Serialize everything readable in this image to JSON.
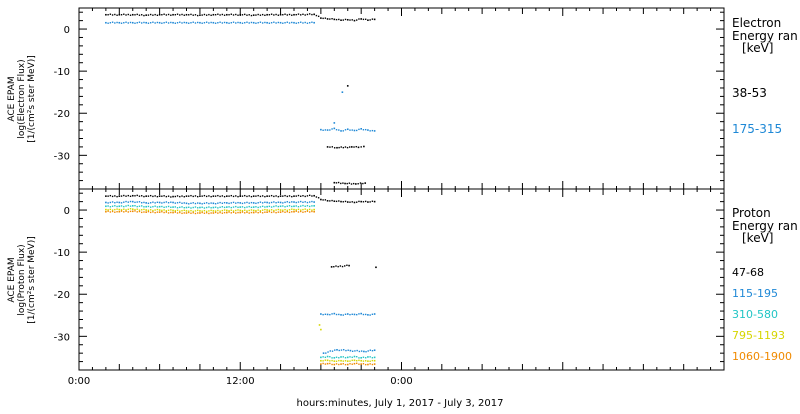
{
  "chart_data": [
    {
      "type": "scatter",
      "panel": "electron",
      "ylabel_lines": [
        "ACE EPAM",
        "log(Electron Flux)",
        "[1/(cm²s ster MeV)]"
      ],
      "yticks": [
        0,
        -10,
        -20,
        -30
      ],
      "ylim": [
        -38,
        5
      ],
      "legend_title": [
        "Electron",
        "Energy ran"
      ],
      "legend_unit": "[keV]",
      "series": [
        {
          "name": "38-53",
          "color": "#000000",
          "points": [
            [
              2.0,
              3.4
            ],
            [
              3.0,
              3.4
            ],
            [
              4.0,
              3.4
            ],
            [
              5.0,
              3.3
            ],
            [
              6.0,
              3.4
            ],
            [
              7.0,
              3.4
            ],
            [
              8.0,
              3.4
            ],
            [
              9.0,
              3.3
            ],
            [
              10.0,
              3.4
            ],
            [
              11.0,
              3.4
            ],
            [
              12.0,
              3.4
            ],
            [
              13.0,
              3.3
            ],
            [
              14.0,
              3.4
            ],
            [
              15.0,
              3.4
            ],
            [
              16.0,
              3.4
            ],
            [
              17.5,
              3.5
            ],
            [
              18.0,
              2.6
            ],
            [
              18.5,
              2.4
            ],
            [
              19.0,
              2.3
            ],
            [
              19.5,
              2.1
            ],
            [
              20.0,
              2.2
            ],
            [
              20.5,
              2.0
            ],
            [
              21.0,
              2.4
            ],
            [
              21.5,
              2.1
            ],
            [
              22.0,
              2.3
            ],
            [
              20.0,
              -13.5
            ],
            [
              18.5,
              -28.0
            ],
            [
              19.2,
              -28.2
            ],
            [
              20.3,
              -28.0
            ],
            [
              20.8,
              -28.1
            ],
            [
              21.2,
              -27.9
            ],
            [
              19.0,
              -36.5
            ],
            [
              19.8,
              -36.7
            ],
            [
              20.6,
              -36.8
            ],
            [
              21.3,
              -36.6
            ]
          ]
        },
        {
          "name": "175-315",
          "color": "#1e88d6",
          "points": [
            [
              2.0,
              1.5
            ],
            [
              3.0,
              1.5
            ],
            [
              4.0,
              1.5
            ],
            [
              5.0,
              1.5
            ],
            [
              6.0,
              1.5
            ],
            [
              7.0,
              1.5
            ],
            [
              8.0,
              1.5
            ],
            [
              9.0,
              1.5
            ],
            [
              10.0,
              1.5
            ],
            [
              11.0,
              1.5
            ],
            [
              12.0,
              1.5
            ],
            [
              13.0,
              1.5
            ],
            [
              14.0,
              1.5
            ],
            [
              15.0,
              1.5
            ],
            [
              16.0,
              1.5
            ],
            [
              17.5,
              1.5
            ],
            [
              18.0,
              -23.9
            ],
            [
              18.5,
              -24.0
            ],
            [
              19.0,
              -23.6
            ],
            [
              19.5,
              -24.2
            ],
            [
              20.0,
              -23.8
            ],
            [
              20.5,
              -24.1
            ],
            [
              21.0,
              -23.7
            ],
            [
              21.5,
              -24.0
            ],
            [
              22.0,
              -24.2
            ],
            [
              19.6,
              -15.0
            ],
            [
              19.0,
              -22.3
            ]
          ]
        }
      ]
    },
    {
      "type": "scatter",
      "panel": "proton",
      "ylabel_lines": [
        "ACE EPAM",
        "log(Proton Flux)",
        "[1/(cm²s ster MeV)]"
      ],
      "yticks": [
        0,
        -10,
        -20,
        -30
      ],
      "ylim": [
        -38,
        5
      ],
      "legend_title": [
        "Proton",
        "Energy ran"
      ],
      "legend_unit": "[keV]",
      "series": [
        {
          "name": "47-68",
          "color": "#000000",
          "points": [
            [
              2.0,
              3.3
            ],
            [
              3.0,
              3.3
            ],
            [
              4.0,
              3.4
            ],
            [
              5.0,
              3.3
            ],
            [
              6.0,
              3.3
            ],
            [
              7.0,
              3.2
            ],
            [
              8.0,
              3.3
            ],
            [
              9.0,
              3.3
            ],
            [
              10.0,
              3.3
            ],
            [
              11.0,
              3.3
            ],
            [
              12.0,
              3.3
            ],
            [
              13.0,
              3.3
            ],
            [
              14.0,
              3.3
            ],
            [
              15.0,
              3.3
            ],
            [
              16.0,
              3.3
            ],
            [
              17.5,
              3.4
            ],
            [
              18.0,
              2.5
            ],
            [
              18.5,
              2.2
            ],
            [
              19.0,
              2.1
            ],
            [
              19.5,
              2.0
            ],
            [
              20.0,
              1.9
            ],
            [
              20.5,
              1.8
            ],
            [
              21.0,
              2.0
            ],
            [
              21.5,
              1.9
            ],
            [
              22.0,
              2.0
            ],
            [
              18.8,
              -13.5
            ],
            [
              20.1,
              -13.2
            ],
            [
              22.1,
              -13.6
            ]
          ]
        },
        {
          "name": "115-195",
          "color": "#1e88d6",
          "points": [
            [
              2.0,
              1.8
            ],
            [
              3.0,
              1.8
            ],
            [
              4.0,
              2.0
            ],
            [
              5.0,
              1.7
            ],
            [
              6.0,
              1.8
            ],
            [
              7.0,
              1.8
            ],
            [
              8.0,
              1.6
            ],
            [
              9.0,
              1.6
            ],
            [
              10.0,
              1.6
            ],
            [
              11.0,
              1.7
            ],
            [
              12.0,
              1.7
            ],
            [
              13.0,
              1.7
            ],
            [
              14.0,
              1.8
            ],
            [
              15.0,
              1.8
            ],
            [
              16.0,
              1.9
            ],
            [
              17.5,
              1.9
            ],
            [
              18.0,
              -24.7
            ],
            [
              18.5,
              -24.8
            ],
            [
              19.0,
              -24.6
            ],
            [
              19.5,
              -24.9
            ],
            [
              20.0,
              -24.7
            ],
            [
              20.5,
              -24.8
            ],
            [
              21.0,
              -24.6
            ],
            [
              21.5,
              -24.9
            ],
            [
              22.0,
              -24.7
            ],
            [
              18.2,
              -34.0
            ],
            [
              19.2,
              -33.2
            ],
            [
              20.2,
              -33.4
            ],
            [
              21.2,
              -33.6
            ],
            [
              22.0,
              -33.3
            ]
          ]
        },
        {
          "name": "310-580",
          "color": "#22c5c5",
          "points": [
            [
              2.0,
              0.9
            ],
            [
              3.0,
              0.9
            ],
            [
              4.0,
              1.0
            ],
            [
              5.0,
              0.8
            ],
            [
              6.0,
              0.8
            ],
            [
              7.0,
              0.7
            ],
            [
              8.0,
              0.6
            ],
            [
              9.0,
              0.6
            ],
            [
              10.0,
              0.6
            ],
            [
              11.0,
              0.7
            ],
            [
              12.0,
              0.7
            ],
            [
              13.0,
              0.7
            ],
            [
              14.0,
              0.8
            ],
            [
              15.0,
              0.9
            ],
            [
              16.0,
              0.9
            ],
            [
              17.5,
              1.0
            ],
            [
              18.0,
              -35.0
            ],
            [
              18.5,
              -34.8
            ],
            [
              19.0,
              -35.1
            ],
            [
              19.5,
              -34.9
            ],
            [
              20.0,
              -35.0
            ],
            [
              20.5,
              -34.8
            ],
            [
              21.0,
              -35.1
            ],
            [
              21.5,
              -34.9
            ],
            [
              22.0,
              -35.0
            ]
          ]
        },
        {
          "name": "795-1193",
          "color": "#d6d600",
          "points": [
            [
              2.0,
              0.1
            ],
            [
              3.0,
              0.1
            ],
            [
              4.0,
              0.2
            ],
            [
              5.0,
              0.0
            ],
            [
              6.0,
              0.0
            ],
            [
              7.0,
              -0.1
            ],
            [
              8.0,
              -0.2
            ],
            [
              9.0,
              -0.2
            ],
            [
              10.0,
              -0.2
            ],
            [
              11.0,
              -0.1
            ],
            [
              12.0,
              -0.1
            ],
            [
              13.0,
              -0.1
            ],
            [
              14.0,
              0.0
            ],
            [
              15.0,
              0.0
            ],
            [
              16.0,
              0.1
            ],
            [
              17.5,
              0.1
            ],
            [
              18.0,
              -35.8
            ],
            [
              18.5,
              -35.7
            ],
            [
              19.0,
              -35.9
            ],
            [
              19.5,
              -35.8
            ],
            [
              20.0,
              -35.9
            ],
            [
              20.5,
              -35.7
            ],
            [
              21.0,
              -35.8
            ],
            [
              21.5,
              -35.9
            ],
            [
              22.0,
              -35.8
            ],
            [
              17.9,
              -27.3
            ],
            [
              18.0,
              -28.4
            ]
          ]
        },
        {
          "name": "1060-1900",
          "color": "#f08a00",
          "points": [
            [
              2.0,
              -0.4
            ],
            [
              3.0,
              -0.4
            ],
            [
              4.0,
              -0.3
            ],
            [
              5.0,
              -0.5
            ],
            [
              6.0,
              -0.5
            ],
            [
              7.0,
              -0.6
            ],
            [
              8.0,
              -0.7
            ],
            [
              9.0,
              -0.7
            ],
            [
              10.0,
              -0.7
            ],
            [
              11.0,
              -0.6
            ],
            [
              12.0,
              -0.6
            ],
            [
              13.0,
              -0.6
            ],
            [
              14.0,
              -0.5
            ],
            [
              15.0,
              -0.5
            ],
            [
              16.0,
              -0.4
            ],
            [
              17.5,
              -0.4
            ],
            [
              18.0,
              -36.6
            ],
            [
              18.5,
              -36.5
            ],
            [
              19.0,
              -36.7
            ],
            [
              19.5,
              -36.6
            ],
            [
              20.0,
              -36.7
            ],
            [
              20.5,
              -36.5
            ],
            [
              21.0,
              -36.6
            ],
            [
              21.5,
              -36.7
            ],
            [
              22.0,
              -36.6
            ]
          ]
        }
      ]
    }
  ],
  "xaxis": {
    "xlim": [
      0,
      48
    ],
    "ticks": [
      {
        "value": 0,
        "label": "0:00"
      },
      {
        "value": 12,
        "label": "12:00"
      },
      {
        "value": 24,
        "label": "0:00"
      }
    ],
    "label": "hours:minutes, July  1, 2017 - July  3, 2017"
  }
}
